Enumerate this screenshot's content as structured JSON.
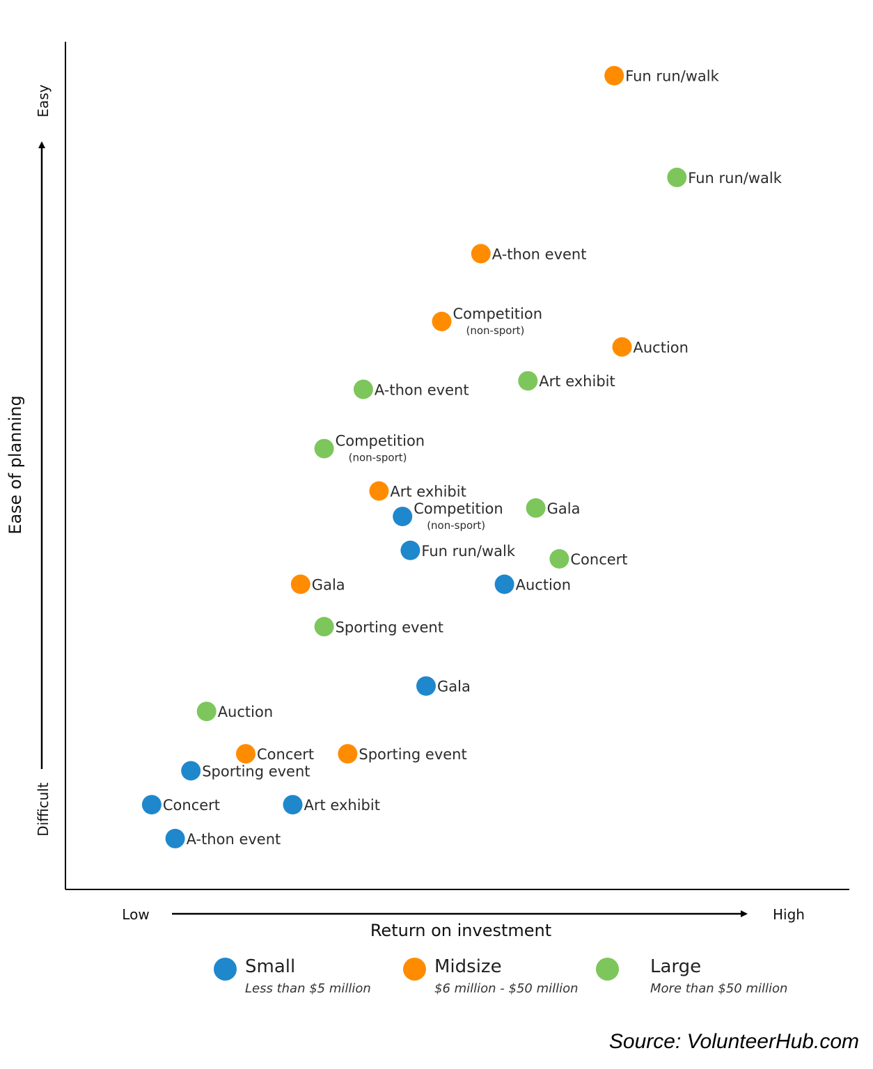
{
  "chart_data": {
    "type": "scatter",
    "xlabel": "Return on investment",
    "ylabel": "Ease of planning",
    "x_low_label": "Low",
    "x_high_label": "High",
    "y_low_label": "Difficult",
    "y_high_label": "Easy",
    "legend_placement": "bottom",
    "series": [
      {
        "name": "Small",
        "description": "Less than $5 million",
        "color": "#1f87cc",
        "points": [
          {
            "label": "Competition",
            "sublabel": "(non-sport)",
            "x": 43,
            "y": 44
          },
          {
            "label": "Fun run/walk",
            "x": 44,
            "y": 40
          },
          {
            "label": "Auction",
            "x": 56,
            "y": 36
          },
          {
            "label": "Gala",
            "x": 46,
            "y": 24
          },
          {
            "label": "Sporting event",
            "x": 16,
            "y": 14
          },
          {
            "label": "Concert",
            "x": 11,
            "y": 10
          },
          {
            "label": "Art exhibit",
            "x": 29,
            "y": 10
          },
          {
            "label": "A-thon event",
            "x": 14,
            "y": 6
          }
        ]
      },
      {
        "name": "Midsize",
        "description": "$6 million - $50 million",
        "color": "#ff8c00",
        "points": [
          {
            "label": "Fun run/walk",
            "x": 70,
            "y": 96
          },
          {
            "label": "A-thon event",
            "x": 53,
            "y": 75
          },
          {
            "label": "Competition",
            "sublabel": "(non-sport)",
            "x": 48,
            "y": 67
          },
          {
            "label": "Auction",
            "x": 71,
            "y": 64
          },
          {
            "label": "Art exhibit",
            "x": 40,
            "y": 47
          },
          {
            "label": "Gala",
            "x": 30,
            "y": 36
          },
          {
            "label": "Concert",
            "x": 23,
            "y": 16
          },
          {
            "label": "Sporting event",
            "x": 36,
            "y": 16
          }
        ]
      },
      {
        "name": "Large",
        "description": "More than $50 million",
        "color": "#7dc65b",
        "points": [
          {
            "label": "Fun run/walk",
            "x": 78,
            "y": 84
          },
          {
            "label": "Art exhibit",
            "x": 59,
            "y": 60
          },
          {
            "label": "A-thon event",
            "x": 38,
            "y": 59
          },
          {
            "label": "Competition",
            "sublabel": "(non-sport)",
            "x": 33,
            "y": 52
          },
          {
            "label": "Gala",
            "x": 60,
            "y": 45
          },
          {
            "label": "Concert",
            "x": 63,
            "y": 39
          },
          {
            "label": "Sporting event",
            "x": 33,
            "y": 31
          },
          {
            "label": "Auction",
            "x": 18,
            "y": 21
          }
        ]
      }
    ]
  },
  "source": "Source: VolunteerHub.com"
}
